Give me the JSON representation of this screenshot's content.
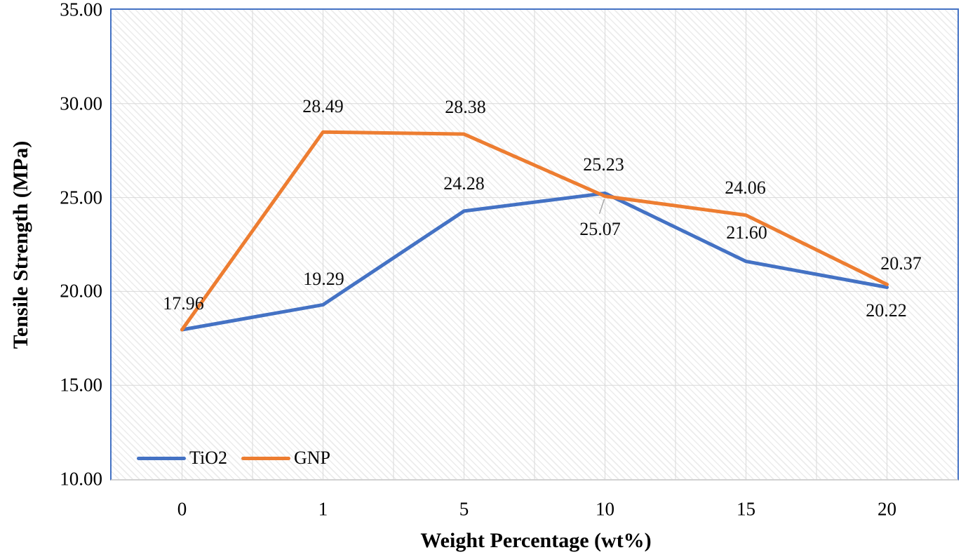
{
  "chart_data": {
    "type": "line",
    "title": "",
    "xlabel": "Weight Percentage (wt%)",
    "ylabel": "Tensile Strength (MPa)",
    "categories": [
      "0",
      "1",
      "5",
      "10",
      "15",
      "20"
    ],
    "series": [
      {
        "name": "TiO2",
        "color": "#4472C4",
        "values": [
          17.96,
          19.29,
          24.28,
          25.23,
          21.6,
          20.22
        ],
        "labels": [
          "17.96",
          "19.29",
          "24.28",
          "25.23",
          "21.60",
          "20.22"
        ],
        "label_offsets": [
          [
            2,
            -37
          ],
          [
            1,
            -36
          ],
          [
            0,
            -39
          ],
          [
            -2,
            -40
          ],
          [
            1,
            -41
          ],
          [
            -1,
            33
          ]
        ]
      },
      {
        "name": "GNP",
        "color": "#ED7D31",
        "values": [
          17.96,
          28.49,
          28.38,
          25.07,
          24.06,
          20.37
        ],
        "labels": [
          null,
          "28.49",
          "28.38",
          "25.07",
          "24.06",
          "20.37"
        ],
        "label_offsets": [
          [
            0,
            0
          ],
          [
            0,
            -36
          ],
          [
            2,
            -38
          ],
          [
            -7,
            47
          ],
          [
            -1,
            -39
          ],
          [
            20,
            -29
          ]
        ]
      }
    ],
    "ylim": [
      10,
      35
    ],
    "ytick_step": 5,
    "ytick_labels": [
      "35.00",
      "30.00",
      "25.00",
      "20.00",
      "15.00",
      "10.00"
    ],
    "grid": true,
    "gridline_color": "#d9d9d9",
    "plot_border_color": "#4472C4",
    "line_width": 5,
    "legend_position": "bottom-left-inside",
    "leader": {
      "series_index": 1,
      "point_index": 3,
      "offset_from": [
        -1,
        4
      ],
      "offset_to": [
        -8,
        25
      ],
      "color": "#a6a6a6"
    }
  }
}
